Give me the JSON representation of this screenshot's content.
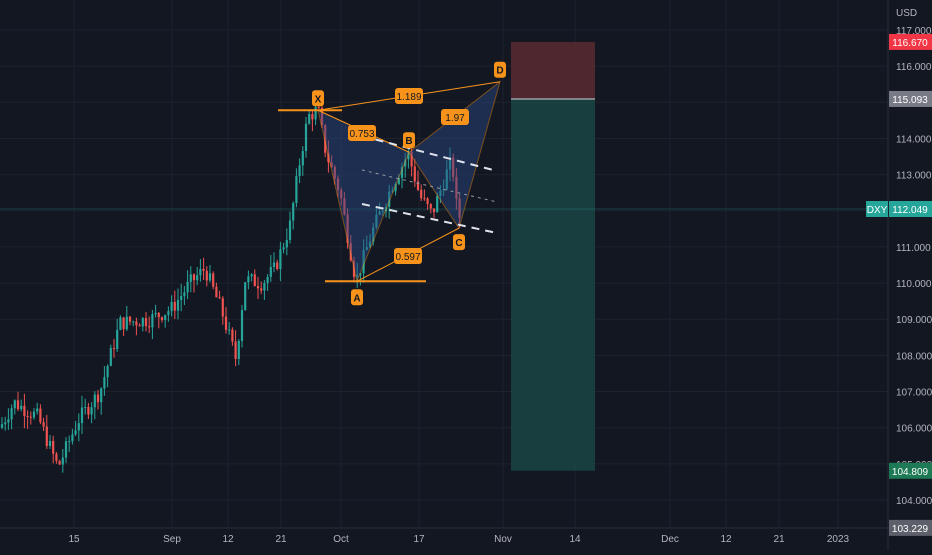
{
  "colors": {
    "background": "#131722",
    "grid": "#1e222d",
    "axis_text": "#b2b5be",
    "candle_up": "#26a69a",
    "candle_down": "#ef5350",
    "pattern": "#f7931a",
    "pattern_fill": "#2a4a8a",
    "stop_zone": "#5a2a30",
    "target_zone": "#1a4545",
    "price_line": "#26a69a"
  },
  "chart_data": {
    "type": "candlestick",
    "symbol": "DXY",
    "currency": "USD",
    "x_tick_labels": [
      "15",
      "Sep",
      "12",
      "21",
      "Oct",
      "17",
      "Nov",
      "14",
      "Dec",
      "12",
      "21",
      "2023"
    ],
    "y_tick_labels": [
      "117.000",
      "116.000",
      "115.000",
      "114.000",
      "113.000",
      "112.000",
      "111.000",
      "110.000",
      "109.000",
      "108.000",
      "107.000",
      "106.000",
      "105.000",
      "104.000"
    ],
    "ylim": [
      103.2,
      117.4
    ],
    "price_badges": [
      {
        "value": "116.670",
        "style": "stop"
      },
      {
        "value": "115.093",
        "style": "entry"
      },
      {
        "value": "112.049",
        "style": "last",
        "label": "DXY"
      },
      {
        "value": "104.809",
        "style": "target"
      },
      {
        "value": "103.229",
        "style": "low"
      }
    ],
    "harmonic_pattern": {
      "points": [
        {
          "label": "X",
          "value": 114.78
        },
        {
          "label": "A",
          "value": 110.05
        },
        {
          "label": "B",
          "value": 113.62
        },
        {
          "label": "C",
          "value": 111.52
        },
        {
          "label": "D",
          "value": 115.57
        }
      ],
      "ratios": [
        "1.189",
        "0.753",
        "1.97",
        "0.597"
      ]
    },
    "position": {
      "stop": 116.67,
      "entry": 115.093,
      "target": 104.809
    },
    "grid": true
  }
}
